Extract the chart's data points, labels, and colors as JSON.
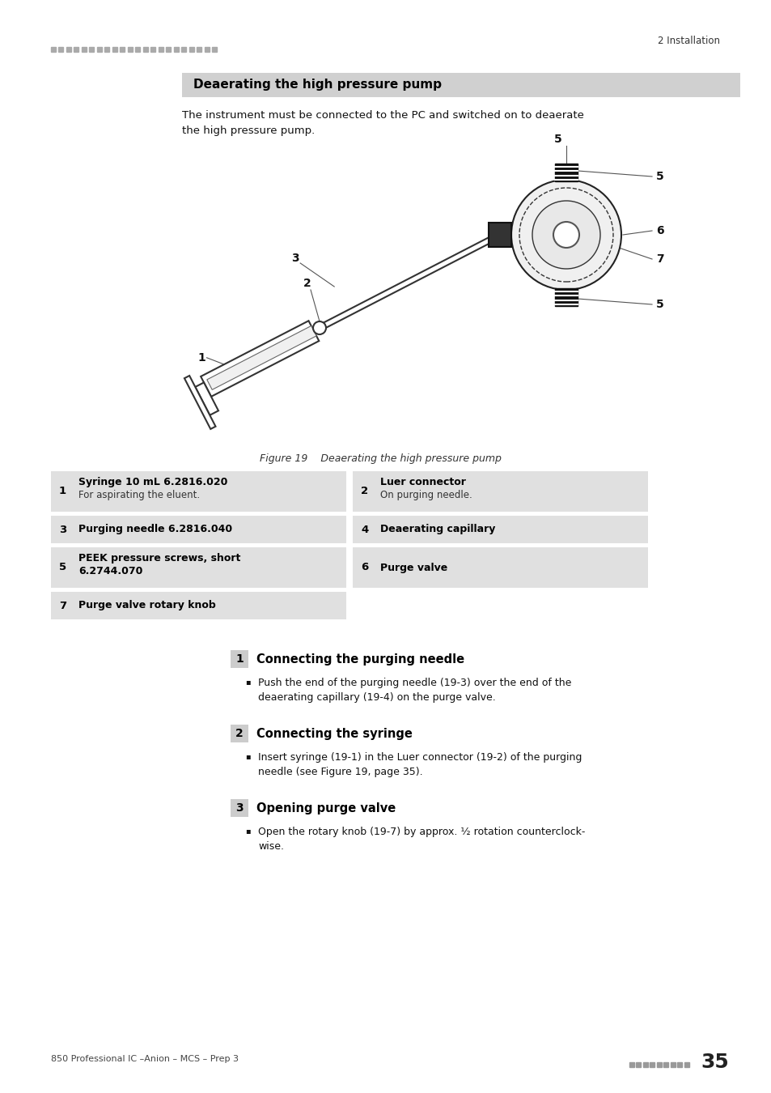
{
  "page_bg": "#ffffff",
  "header_dots_color": "#aaaaaa",
  "header_right_text": "2 Installation",
  "footer_left_text": "850 Professional IC –Anion – MCS – Prep 3",
  "footer_dots_color": "#999999",
  "footer_right_text": "35",
  "title_box_text": "Deaerating the high pressure pump",
  "title_box_bg": "#d0d0d0",
  "intro_line1": "The instrument must be connected to the PC and switched on to deaerate",
  "intro_line2": "the high pressure pump.",
  "figure_caption": "Figure 19    Deaerating the high pressure pump",
  "table_items": [
    {
      "num": "1",
      "title": "Syringe 10 mL 6.2816.020",
      "subtitle": "For aspirating the eluent."
    },
    {
      "num": "2",
      "title": "Luer connector",
      "subtitle": "On purging needle."
    },
    {
      "num": "3",
      "title": "Purging needle 6.2816.040",
      "subtitle": ""
    },
    {
      "num": "4",
      "title": "Deaerating capillary",
      "subtitle": ""
    },
    {
      "num": "5",
      "title": "PEEK pressure screws, short",
      "subtitle2": "6.2744.070"
    },
    {
      "num": "6",
      "title": "Purge valve",
      "subtitle": ""
    },
    {
      "num": "7",
      "title": "Purge valve rotary knob",
      "subtitle": ""
    }
  ],
  "steps": [
    {
      "num": "1",
      "heading": "Connecting the purging needle",
      "bullet_parts": [
        [
          "Push the end of the purging needle ",
          "(19-",
          "3",
          ")",
          " over the end of the"
        ],
        [
          "deaerating capillary ",
          "(19-",
          "4",
          ")",
          " on the purge valve."
        ]
      ]
    },
    {
      "num": "2",
      "heading": "Connecting the syringe",
      "bullet_parts": [
        [
          "Insert syringe ",
          "(19-",
          "1",
          ")",
          " in the Luer connector ",
          "(19-",
          "2",
          ")",
          " of the purging"
        ],
        [
          "needle ",
          "(see Figure 19, page 35)",
          ".",
          "",
          "",
          "",
          "",
          "",
          ""
        ]
      ]
    },
    {
      "num": "3",
      "heading": "Opening purge valve",
      "bullet_parts": [
        [
          "Open the rotary knob ",
          "(19-",
          "7",
          ")",
          " by approx. ½ rotation counterclockwise."
        ]
      ]
    }
  ],
  "step_box_bg": "#cccccc",
  "table_row_bg": "#e0e0e0"
}
